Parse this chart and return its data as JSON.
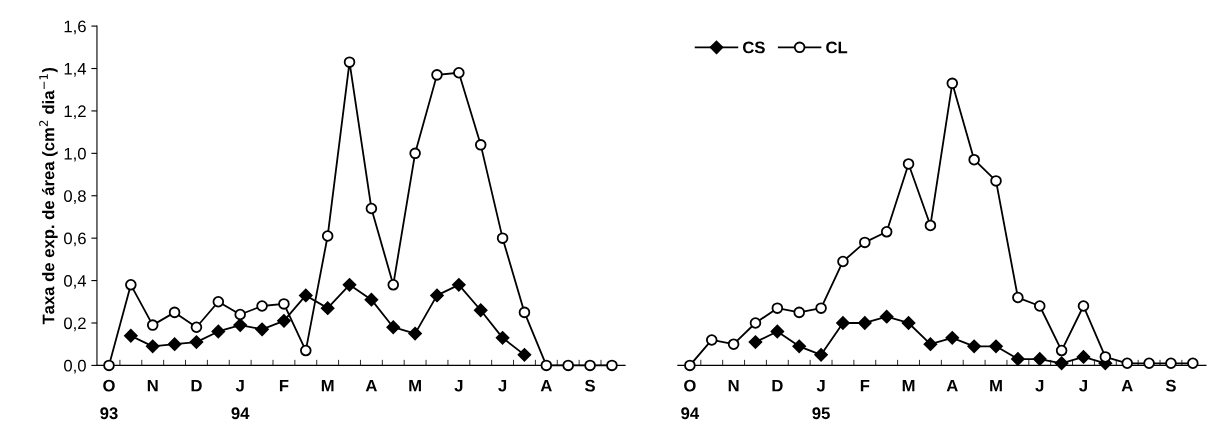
{
  "chart_data": [
    {
      "type": "line",
      "ylabel": "Taxa de exp. de área (cm$^{2}$ dia$^{−1}$)",
      "categories": [
        "O\n93",
        null,
        "N",
        null,
        "D",
        null,
        "J\n94",
        null,
        "F",
        null,
        "M",
        null,
        "A",
        null,
        "M",
        null,
        "J",
        null,
        "J",
        null,
        "A",
        null,
        "S",
        null
      ],
      "series": [
        {
          "name": "CS",
          "color": "#000000",
          "marker": "diamond",
          "values": [
            null,
            0.14,
            0.09,
            0.1,
            0.11,
            0.16,
            0.19,
            0.17,
            0.21,
            0.33,
            0.27,
            0.38,
            0.31,
            0.18,
            0.15,
            0.33,
            0.38,
            0.26,
            0.13,
            0.05,
            null,
            null,
            null,
            null
          ]
        },
        {
          "name": "CL",
          "color": "#000000",
          "marker": "circle",
          "values": [
            0,
            0.38,
            0.19,
            0.25,
            0.18,
            0.3,
            0.24,
            0.28,
            0.29,
            0.07,
            0.61,
            1.43,
            0.74,
            0.38,
            1.0,
            1.37,
            1.38,
            1.04,
            0.6,
            0.25,
            0,
            0,
            0,
            0
          ]
        }
      ],
      "ylim": [
        0,
        1.6
      ],
      "yticks": [
        {
          "value": 0,
          "label": "0,0"
        },
        {
          "value": 0.2,
          "label": "0,2"
        },
        {
          "value": 0.4,
          "label": "0,4"
        },
        {
          "value": 0.6,
          "label": "0,6"
        },
        {
          "value": 0.8,
          "label": "0,8"
        },
        {
          "value": 1.0,
          "label": "1,0"
        },
        {
          "value": 1.2,
          "label": "1,2"
        },
        {
          "value": 1.4,
          "label": "1,4"
        },
        {
          "value": 1.6,
          "label": "1,6"
        }
      ],
      "grid": false,
      "legend": "top right"
    },
    {
      "type": "line",
      "categories": [
        "O\n94",
        null,
        "N",
        null,
        "D",
        null,
        "J\n95",
        null,
        "F",
        null,
        "M",
        null,
        "A",
        null,
        "M",
        null,
        "J",
        null,
        "J",
        null,
        "A",
        null,
        "S",
        null
      ],
      "series": [
        {
          "color": "#000000",
          "marker": "diamond",
          "values": [
            null,
            null,
            null,
            0.11,
            0.16,
            0.09,
            0.05,
            0.2,
            0.2,
            0.23,
            0.2,
            0.1,
            0.13,
            0.09,
            0.09,
            0.03,
            0.03,
            0.01,
            0.04,
            0.01,
            null,
            null,
            null,
            null
          ]
        },
        {
          "color": "#000000",
          "marker": "circle",
          "values": [
            0,
            0.12,
            0.1,
            0.2,
            0.27,
            0.25,
            0.27,
            0.49,
            0.58,
            0.63,
            0.95,
            0.66,
            1.33,
            0.97,
            0.87,
            0.32,
            0.28,
            0.07,
            0.28,
            0.04,
            0.01,
            0.01,
            0.01,
            0.01
          ]
        }
      ],
      "ylim": [
        0,
        1.6
      ],
      "tick_labels": "x",
      "grid": false
    }
  ]
}
